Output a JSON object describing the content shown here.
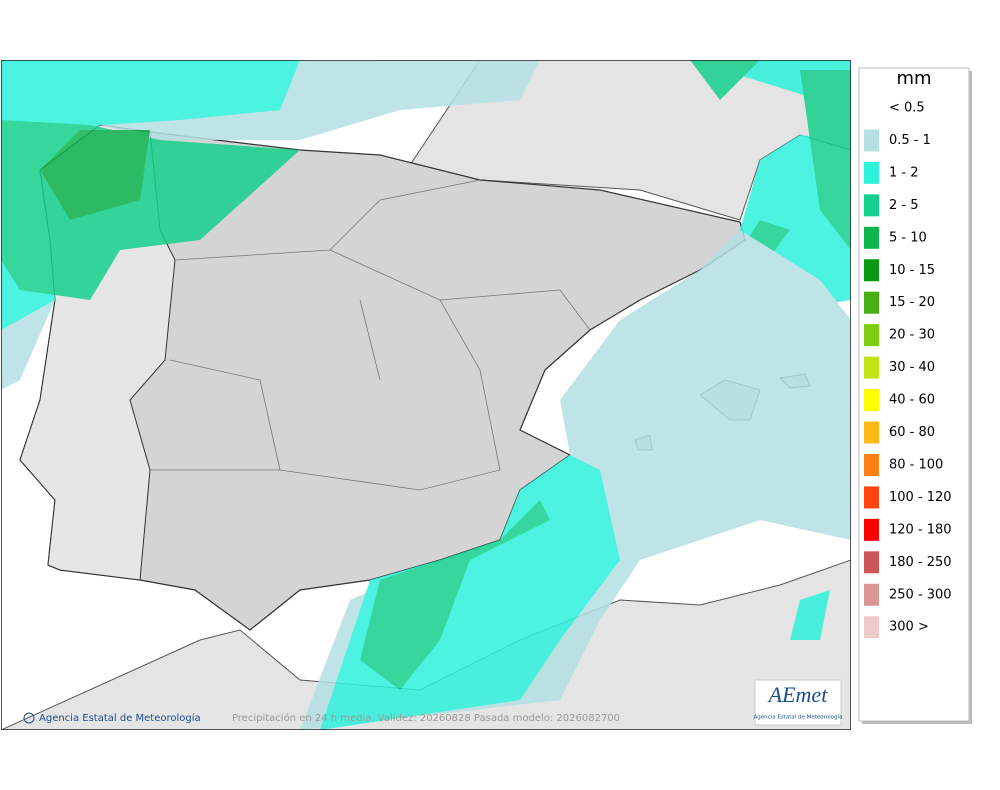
{
  "map": {
    "credit": "Agencia Estatal de Meteorología",
    "footer": "Precipitación en 24 h media. Validez: 20260828 Pasada modelo: 2026082700",
    "logo": {
      "name": "AEmet",
      "subtitle": "Agencia Estatal de Meteorología"
    }
  },
  "legend": {
    "title": "mm",
    "items": [
      {
        "label": "< 0.5"
      },
      {
        "label": "0.5 - 1",
        "color": "#b4e0e4"
      },
      {
        "label": "1 - 2",
        "color": "#2ef2dc"
      },
      {
        "label": "2 - 5",
        "color": "#14d08c"
      },
      {
        "label": "5 - 10",
        "color": "#0cb44c"
      },
      {
        "label": "10 - 15",
        "color": "#089a10"
      },
      {
        "label": "15 - 20",
        "color": "#46b012"
      },
      {
        "label": "20 - 30",
        "color": "#7ccc10"
      },
      {
        "label": "30 - 40",
        "color": "#c2e412"
      },
      {
        "label": "40 - 60",
        "color": "#ffff00"
      },
      {
        "label": "60 - 80",
        "color": "#ffb814"
      },
      {
        "label": "80 - 100",
        "color": "#ff8012"
      },
      {
        "label": "100 - 120",
        "color": "#ff4412"
      },
      {
        "label": "120 - 180",
        "color": "#ff0000"
      },
      {
        "label": "180 - 250",
        "color": "#cc5656"
      },
      {
        "label": "250 - 300",
        "color": "#dc9494"
      },
      {
        "label": "300 >",
        "color": "#efcaca"
      }
    ]
  }
}
